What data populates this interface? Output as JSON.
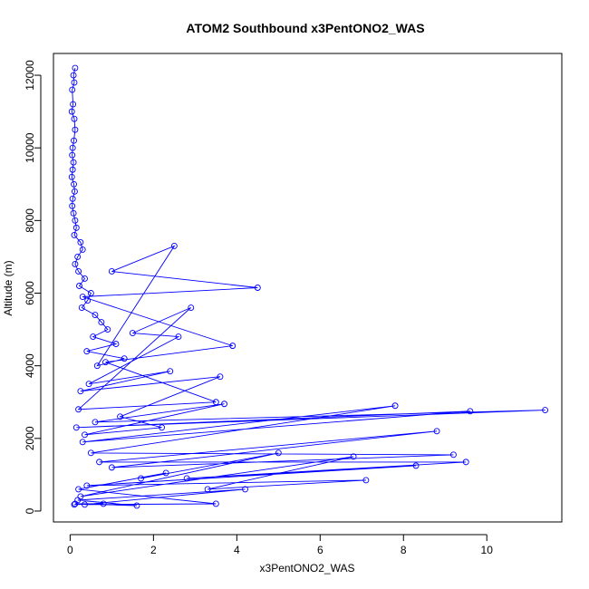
{
  "chart_data": {
    "type": "line",
    "title": "ATOM2 Southbound x3PentONO2_WAS",
    "xlabel": "x3PentONO2_WAS",
    "ylabel": "Altitude (m)",
    "xlim": [
      -0.4,
      11.8
    ],
    "ylim": [
      -300,
      12600
    ],
    "xticks": [
      0,
      2,
      4,
      6,
      8,
      10
    ],
    "yticks": [
      0,
      2000,
      4000,
      6000,
      8000,
      10000,
      12000
    ],
    "grid": false,
    "legend": "none",
    "color": "#0000ff",
    "series": [
      {
        "x": [
          0.12,
          0.08,
          0.1,
          0.05,
          0.07,
          0.04,
          0.1,
          0.12,
          0.09,
          0.06,
          0.05,
          0.08,
          0.06,
          0.04,
          0.09,
          0.11,
          0.06,
          0.05,
          0.08,
          0.12,
          0.15,
          0.1,
          0.25,
          0.3,
          0.18,
          0.12,
          0.2,
          0.35,
          0.22,
          0.5,
          0.42,
          0.28,
          0.6,
          0.75,
          0.9,
          0.55,
          1.1,
          0.4,
          1.3,
          0.65,
          2.5,
          1.0,
          4.5,
          0.3,
          3.9,
          0.85,
          3.5,
          0.2,
          2.9,
          1.5,
          2.6,
          0.45,
          2.4,
          0.25,
          3.6,
          1.2,
          2.2,
          0.35,
          3.7,
          0.6,
          11.4,
          0.15,
          9.6,
          0.3,
          7.8,
          0.5,
          9.2,
          1.0,
          8.8,
          0.7,
          9.5,
          2.8,
          8.3,
          0.4,
          7.1,
          3.3,
          6.8,
          0.25,
          5.0,
          1.7,
          2.3,
          0.2,
          3.5,
          0.35,
          4.2,
          0.18,
          1.6,
          0.12,
          0.8,
          0.1
        ],
        "y": [
          12200,
          12000,
          11800,
          11600,
          11200,
          11000,
          10800,
          10500,
          10200,
          10000,
          9800,
          9600,
          9400,
          9200,
          9000,
          8800,
          8600,
          8400,
          8200,
          8000,
          7800,
          7600,
          7400,
          7200,
          7000,
          6800,
          6600,
          6400,
          6200,
          6000,
          5800,
          5600,
          5400,
          5200,
          5000,
          4800,
          4600,
          4400,
          4200,
          4000,
          7300,
          6600,
          6150,
          5900,
          4550,
          4100,
          3000,
          2800,
          5600,
          4900,
          4800,
          3500,
          3850,
          3300,
          3700,
          2600,
          2300,
          2100,
          2950,
          2450,
          2780,
          2300,
          2750,
          1900,
          2900,
          1600,
          1550,
          1200,
          2200,
          1350,
          1350,
          900,
          1250,
          700,
          850,
          600,
          1500,
          400,
          1600,
          900,
          1050,
          600,
          200,
          180,
          600,
          300,
          150,
          200,
          200,
          180
        ]
      }
    ]
  }
}
